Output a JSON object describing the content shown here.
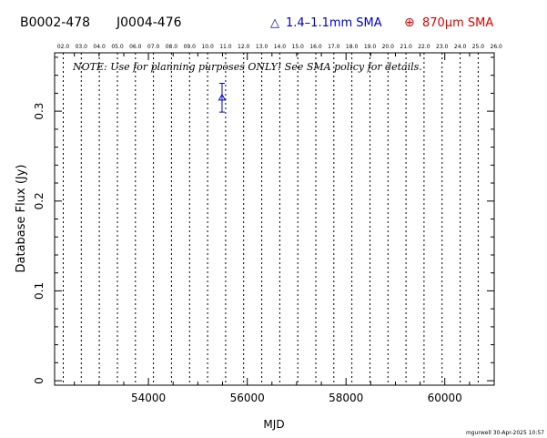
{
  "chart_data": {
    "type": "scatter",
    "source_name": "B0002-478",
    "alt_name": "J0004-476",
    "legend": [
      {
        "name": "1.4–1.1mm SMA",
        "symbol": "△",
        "color": "#0000cc"
      },
      {
        "name": "870μm SMA",
        "symbol": "⊕",
        "color": "#dd0000"
      }
    ],
    "note": "NOTE: Use for planning purposes ONLY!  See SMA policy for details.",
    "xlabel": "MJD",
    "ylabel": "Database Flux (Jy)",
    "xlim": [
      52100,
      61000
    ],
    "ylim": [
      -0.005,
      0.365
    ],
    "xticks": [
      54000,
      56000,
      58000,
      60000
    ],
    "xtick_labels": [
      "54000",
      "56000",
      "58000",
      "60000"
    ],
    "yticks": [
      0,
      0.1,
      0.2,
      0.3
    ],
    "ytick_labels": [
      "0",
      "0.1",
      "0.2",
      "0.3"
    ],
    "year_boundaries_mjd": [
      52275,
      52640,
      53005,
      53371,
      53736,
      54101,
      54466,
      54832,
      55197,
      55562,
      55927,
      56293,
      56658,
      57023,
      57388,
      57754,
      58119,
      58484,
      58849,
      59215,
      59580,
      59945,
      60310,
      60676
    ],
    "year_labels": [
      "02.0",
      "03.0",
      "04.0",
      "05.0",
      "06.0",
      "07.0",
      "08.0",
      "09.0",
      "10.0",
      "11.0",
      "12.0",
      "13.0",
      "14.0",
      "15.0",
      "16.0",
      "17.0",
      "18.0",
      "19.0",
      "20.0",
      "21.0",
      "22.0",
      "23.0",
      "24.0",
      "25.0",
      "26.0"
    ],
    "year_label_mjd": [
      52275,
      52640,
      53005,
      53371,
      53736,
      54101,
      54466,
      54832,
      55197,
      55562,
      55927,
      56293,
      56658,
      57023,
      57388,
      57754,
      58119,
      58484,
      58849,
      59215,
      59580,
      59945,
      60310,
      60676,
      61041
    ],
    "series": [
      {
        "name": "1.4–1.1mm SMA",
        "color": "#0000cc",
        "marker": "triangle",
        "points": [
          {
            "x": 55490,
            "y": 0.315,
            "err": 0.016
          }
        ]
      },
      {
        "name": "870μm SMA",
        "color": "#dd0000",
        "marker": "circle-plus",
        "points": []
      }
    ]
  },
  "footer": "mgurwell 30-Apr-2025 10:57"
}
